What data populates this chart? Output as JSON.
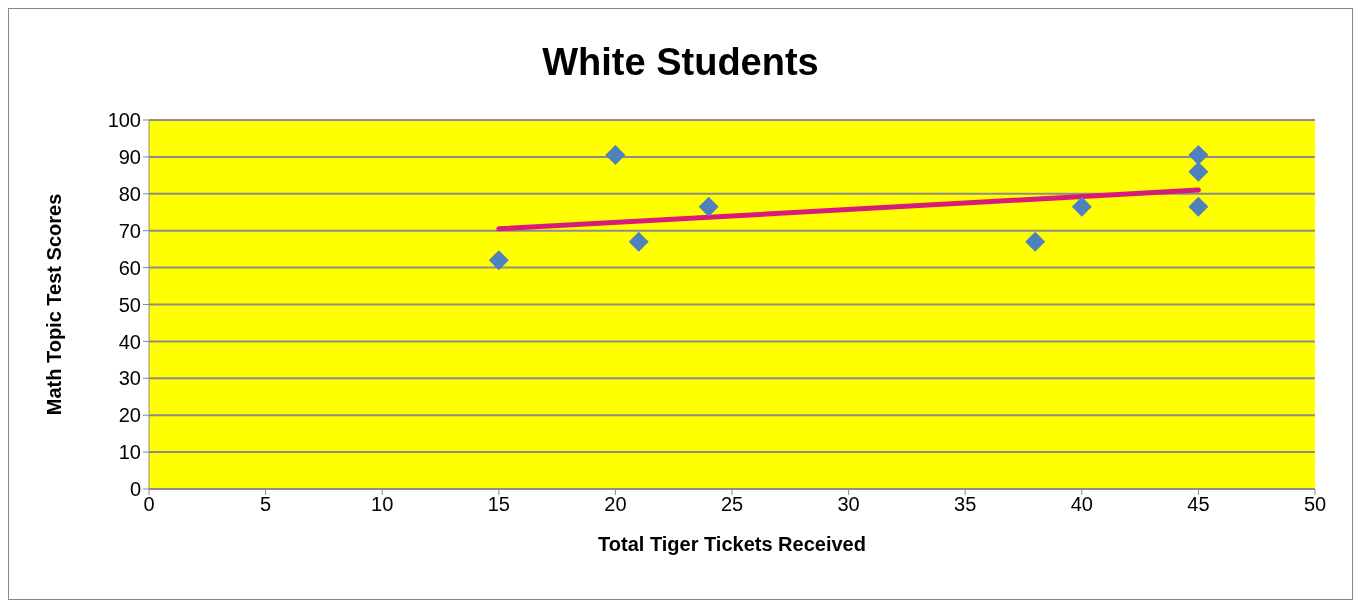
{
  "chart_data": {
    "type": "scatter",
    "title": "White Students",
    "xlabel": "Total Tiger Tickets Received",
    "ylabel": "Math Topic Test Scores",
    "series": [
      {
        "color": "#4f81bd",
        "x": [
          15,
          20,
          21,
          24,
          38,
          40,
          45,
          45,
          45
        ],
        "values": [
          62,
          90.5,
          67,
          76.5,
          67,
          76.5,
          90.5,
          86,
          76.5
        ],
        "marker": "diamond"
      },
      {
        "type": "line",
        "color": "#d81b7a",
        "x": [
          15,
          45
        ],
        "values": [
          70.5,
          81
        ],
        "marker": "none",
        "line_style": "solid"
      }
    ],
    "xlim": [
      0,
      50
    ],
    "xticks": [
      0,
      5,
      10,
      15,
      20,
      25,
      30,
      35,
      40,
      45,
      50
    ],
    "ylim": [
      0,
      100
    ],
    "yticks": [
      0,
      10,
      20,
      30,
      40,
      50,
      60,
      70,
      80,
      90,
      100
    ],
    "grid": "y"
  }
}
